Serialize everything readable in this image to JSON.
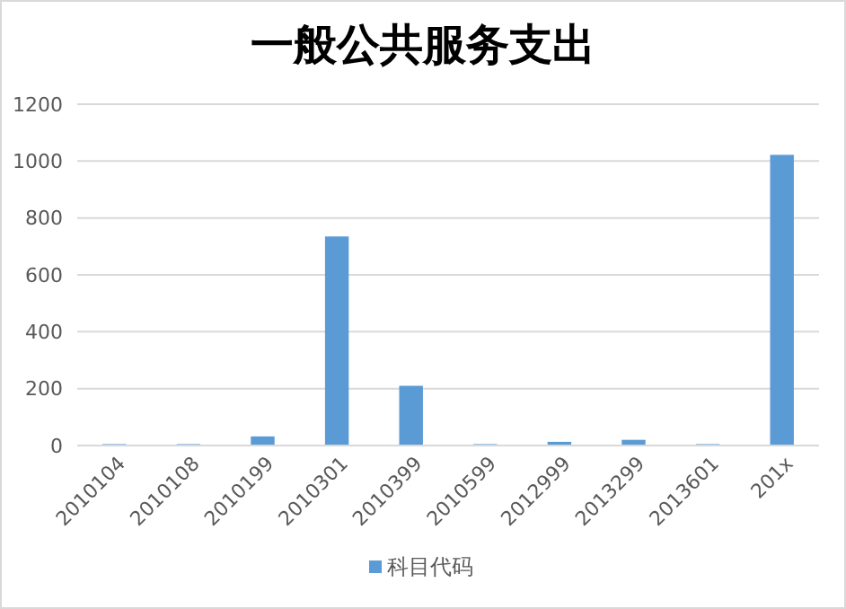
{
  "chart_data": {
    "type": "bar",
    "title": "一般公共服务支出",
    "categories": [
      "2010104",
      "2010108",
      "2010199",
      "2010301",
      "2010399",
      "2010599",
      "2012999",
      "2013299",
      "2013601",
      "201x"
    ],
    "series": [
      {
        "name": "科目代码",
        "color": "#5b9bd5",
        "values": [
          5,
          5,
          32,
          735,
          210,
          5,
          13,
          20,
          5,
          1022
        ]
      }
    ],
    "ylim": [
      0,
      1200
    ],
    "yticks": [
      0,
      200,
      400,
      600,
      800,
      1000,
      1200
    ],
    "grid": "y",
    "legend": "bottom"
  }
}
